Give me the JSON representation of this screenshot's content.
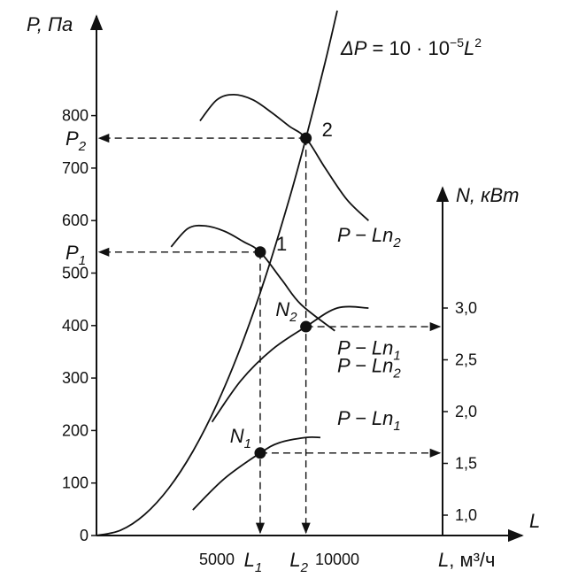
{
  "chart_data": {
    "type": "line",
    "title": "",
    "formula": {
      "lhs": "ΔP",
      "eq": " = 10 · 10",
      "exp": "−5",
      "var": "L",
      "pow": "2"
    },
    "x_axis": {
      "label_var": "L",
      "label_unit": ", м³/ч",
      "arrow_label": "L",
      "range": [
        0,
        18000
      ],
      "ticks": [
        {
          "value": 5000,
          "label": "5000"
        },
        {
          "value": 10000,
          "label": "10000"
        }
      ]
    },
    "y_axis": {
      "label": "P, Па",
      "range": [
        0,
        900
      ],
      "ticks": [
        {
          "value": 0,
          "label": "0"
        },
        {
          "value": 100,
          "label": "100"
        },
        {
          "value": 200,
          "label": "200"
        },
        {
          "value": 300,
          "label": "300"
        },
        {
          "value": 400,
          "label": "400"
        },
        {
          "value": 500,
          "label": "500"
        },
        {
          "value": 600,
          "label": "600"
        },
        {
          "value": 700,
          "label": "700"
        },
        {
          "value": 800,
          "label": "800"
        }
      ]
    },
    "n_axis": {
      "label": "N, кВт",
      "range": [
        0.8,
        3.6
      ],
      "ticks": [
        {
          "value": 1.0,
          "label": "1,0"
        },
        {
          "value": 1.5,
          "label": "1,5"
        },
        {
          "value": 2.0,
          "label": "2,0"
        },
        {
          "value": 2.5,
          "label": "2,5"
        },
        {
          "value": 3.0,
          "label": "3,0"
        }
      ]
    },
    "network_curve": {
      "x": [
        0,
        1000,
        2000,
        3000,
        4000,
        5000,
        6000,
        7000,
        8000,
        8700,
        9500,
        10000
      ],
      "y": [
        0,
        10,
        40,
        90,
        160,
        250,
        360,
        490,
        640,
        757,
        902,
        1000
      ]
    },
    "fan_pressure_curves": [
      {
        "name": "P − Ln₂",
        "label_main": "P − Ln",
        "label_sub": "2",
        "label_at": [
          10000,
          560
        ],
        "x": [
          4300,
          5000,
          5700,
          6500,
          7300,
          8000,
          8700,
          9500,
          10400,
          11300
        ],
        "y": [
          790,
          830,
          840,
          830,
          805,
          780,
          757,
          700,
          640,
          600
        ]
      },
      {
        "name": "P − Ln₁",
        "label_main": "P − Ln",
        "label_sub": "1",
        "label_at": [
          10000,
          345
        ],
        "x": [
          3100,
          3800,
          4500,
          5300,
          6100,
          6800,
          7700,
          8500,
          9900
        ],
        "y": [
          550,
          585,
          590,
          580,
          560,
          540,
          487,
          440,
          390
        ]
      }
    ],
    "fan_power_curves": [
      {
        "name": "P − Ln₂",
        "label_main": "P − Ln",
        "label_sub": "2",
        "label_at": [
          10000,
          2.38
        ],
        "x": [
          4800,
          6000,
          7300,
          8700,
          10000,
          11300
        ],
        "y": [
          1.9,
          2.3,
          2.6,
          2.82,
          3.0,
          3.0
        ]
      },
      {
        "name": "P − Ln₁",
        "label_main": "P − Ln",
        "label_sub": "1",
        "label_at": [
          10000,
          1.87
        ],
        "x": [
          4000,
          5300,
          6800,
          7600,
          8700,
          9300
        ],
        "y": [
          1.05,
          1.35,
          1.6,
          1.7,
          1.75,
          1.75
        ]
      }
    ],
    "operating_points": [
      {
        "label": "1",
        "L": 6800,
        "P": 540
      },
      {
        "label": "2",
        "L": 8700,
        "P": 757
      }
    ],
    "power_points": [
      {
        "label_main": "N",
        "label_sub": "1",
        "L": 6800,
        "N": 1.6
      },
      {
        "label_main": "N",
        "label_sub": "2",
        "L": 8700,
        "N": 2.82
      }
    ],
    "pressure_markers": [
      {
        "label_main": "P",
        "label_sub": "2",
        "P": 757
      },
      {
        "label_main": "P",
        "label_sub": "1",
        "P": 540
      }
    ],
    "flow_markers": [
      {
        "label_main": "L",
        "label_sub": "1",
        "L": 6800
      },
      {
        "label_main": "L",
        "label_sub": "2",
        "L": 8700
      }
    ]
  }
}
